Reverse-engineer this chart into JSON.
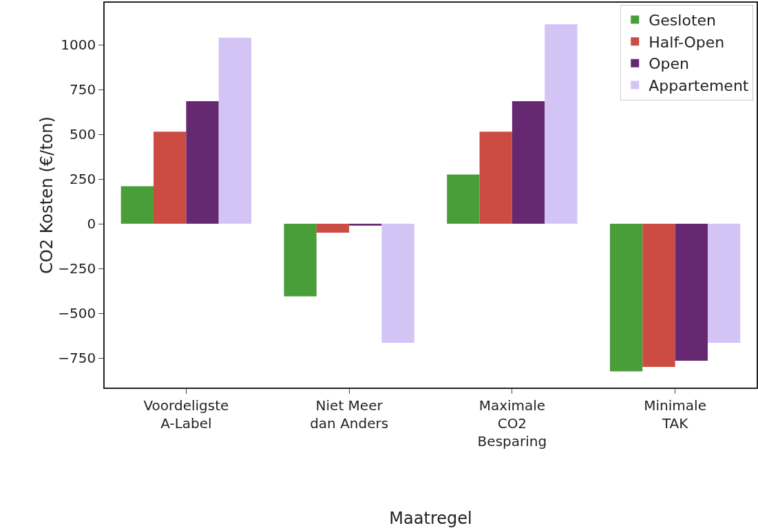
{
  "chart_data": {
    "type": "bar",
    "xlabel": "Maatregel",
    "ylabel": "CO2 Kosten (€/ton)",
    "categories": [
      "Voordeligste\nA-Label",
      "Niet Meer\ndan Anders",
      "Maximale\nCO2\nBesparing",
      "Minimale\nTAK"
    ],
    "series": [
      {
        "name": "Gesloten",
        "color": "#4a9e3a",
        "values": [
          210,
          -405,
          275,
          -825
        ]
      },
      {
        "name": "Half-Open",
        "color": "#cc4c44",
        "values": [
          515,
          -50,
          515,
          -800
        ]
      },
      {
        "name": "Open",
        "color": "#662870",
        "values": [
          685,
          -10,
          685,
          -765
        ]
      },
      {
        "name": "Appartement",
        "color": "#d4c4f6",
        "values": [
          1040,
          -665,
          1115,
          -665
        ]
      }
    ],
    "ylim": [
      -915,
      1235
    ],
    "yticks": [
      {
        "value": -750,
        "label": "−750"
      },
      {
        "value": -500,
        "label": "−500"
      },
      {
        "value": -250,
        "label": "−250"
      },
      0,
      250,
      500,
      750,
      1000
    ],
    "grid": false,
    "legend": "top right"
  }
}
